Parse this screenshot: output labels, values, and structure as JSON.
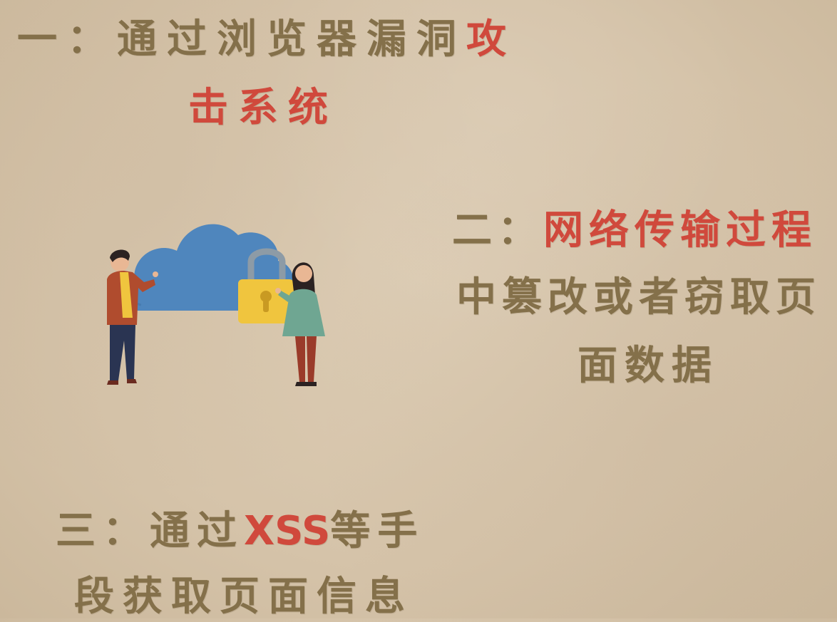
{
  "point1": {
    "prefix": "一：通过浏览器漏洞",
    "highlight_a": "攻",
    "highlight_b": "击系统"
  },
  "point2": {
    "prefix": "二：",
    "highlight": "网络传输过程",
    "line2": "中篡改或者窃取页",
    "line3": "面数据"
  },
  "point3": {
    "prefix": "三：通过",
    "highlight": "XSS",
    "suffix": "等手",
    "line2": "段获取页面信息"
  },
  "colors": {
    "background": "#d8c8ae",
    "text_brown": "#84704a",
    "text_red": "#d0493c",
    "cloud": "#4f86bd",
    "lock": "#f0c53e"
  },
  "illustration": {
    "icon": "cloud-lock-people-illustration"
  }
}
